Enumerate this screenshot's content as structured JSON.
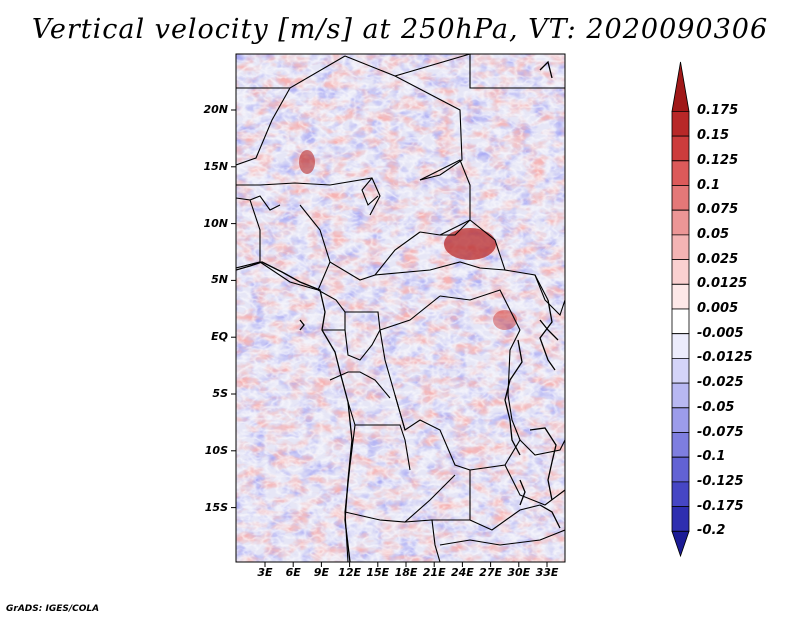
{
  "title": "Vertical velocity [m/s] at 250hPa, VT: 2020090306",
  "credit": "GrADS: IGES/COLA",
  "lat_labels": [
    "20N",
    "15N",
    "10N",
    "5N",
    "EQ",
    "5S",
    "10S",
    "15S"
  ],
  "lon_labels": [
    "3E",
    "6E",
    "9E",
    "12E",
    "15E",
    "18E",
    "21E",
    "24E",
    "27E",
    "30E",
    "33E"
  ],
  "colorbar": {
    "labels": [
      "0.175",
      "0.15",
      "0.125",
      "0.1",
      "0.075",
      "0.05",
      "0.025",
      "0.0125",
      "0.005",
      "-0.005",
      "-0.0125",
      "-0.025",
      "-0.05",
      "-0.075",
      "-0.1",
      "-0.125",
      "-0.175",
      "-0.2"
    ],
    "colors": [
      "#a01818",
      "#b82828",
      "#cc3c3c",
      "#dc5a5a",
      "#e47878",
      "#ec9696",
      "#f4b4b4",
      "#fad0d0",
      "#fde8e8",
      "#ffffff",
      "#ececfc",
      "#d4d4f8",
      "#b8b8f2",
      "#9c9cea",
      "#7e7ee0",
      "#6262d4",
      "#4646c4",
      "#2e2eb0",
      "#1c1c96"
    ]
  },
  "map_colors": {
    "land_bg": "#e6e6f6",
    "border": "#000000"
  }
}
